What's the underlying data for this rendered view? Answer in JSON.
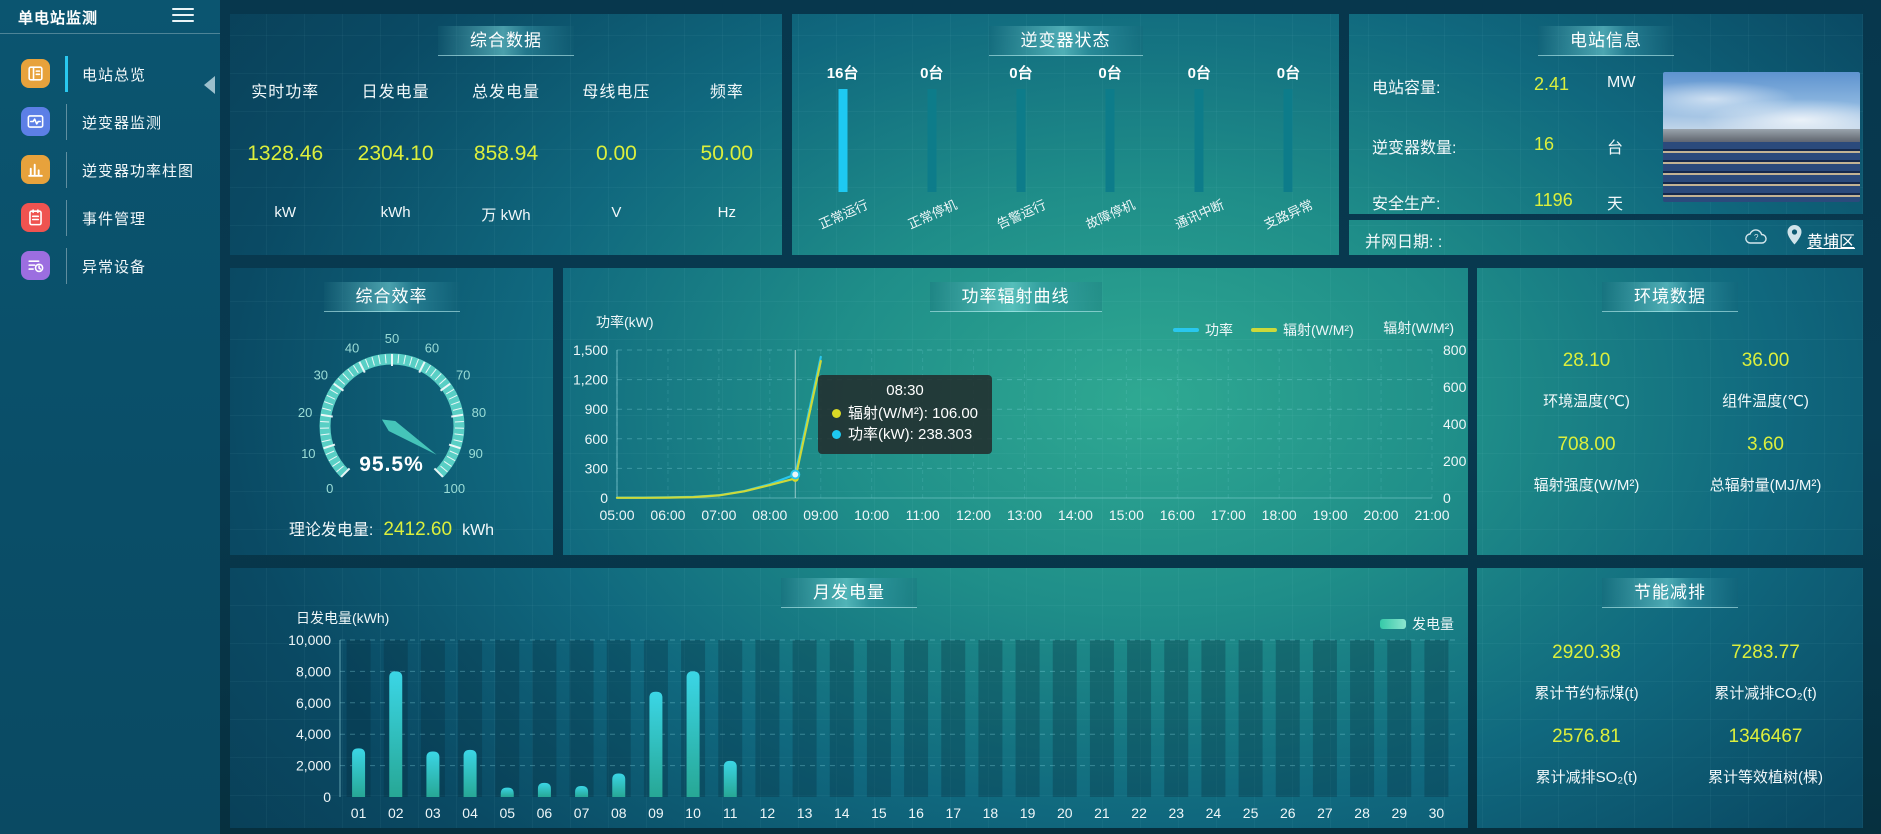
{
  "sidebar": {
    "title": "单电站监测",
    "items": [
      {
        "label": "电站总览",
        "active": true
      },
      {
        "label": "逆变器监测",
        "active": false
      },
      {
        "label": "逆变器功率柱图",
        "active": false
      },
      {
        "label": "事件管理",
        "active": false
      },
      {
        "label": "异常设备",
        "active": false
      }
    ]
  },
  "summary": {
    "title": "综合数据",
    "metrics": [
      {
        "label": "实时功率",
        "value": "1328.46",
        "unit": "kW"
      },
      {
        "label": "日发电量",
        "value": "2304.10",
        "unit": "kWh"
      },
      {
        "label": "总发电量",
        "value": "858.94",
        "unit": "万 kWh"
      },
      {
        "label": "母线电压",
        "value": "0.00",
        "unit": "V"
      },
      {
        "label": "频率",
        "value": "50.00",
        "unit": "Hz"
      }
    ]
  },
  "inverter_status": {
    "title": "逆变器状态",
    "items": [
      {
        "count": "16台",
        "label": "正常运行"
      },
      {
        "count": "0台",
        "label": "正常停机"
      },
      {
        "count": "0台",
        "label": "告警运行"
      },
      {
        "count": "0台",
        "label": "故障停机"
      },
      {
        "count": "0台",
        "label": "通讯中断"
      },
      {
        "count": "0台",
        "label": "支路异常"
      }
    ]
  },
  "station_info": {
    "title": "电站信息",
    "rows": [
      {
        "label": "电站容量:",
        "value": "2.41",
        "unit": "MW"
      },
      {
        "label": "逆变器数量:",
        "value": "16",
        "unit": "台"
      },
      {
        "label": "安全生产:",
        "value": "1196",
        "unit": "天"
      }
    ],
    "grid_date": "并网日期:  :",
    "district": "黄埔区"
  },
  "efficiency": {
    "title": "综合效率",
    "value_label": "95.5%",
    "theory_label": "理论发电量:",
    "theory_value": "2412.60",
    "theory_unit": "kWh"
  },
  "power_curve": {
    "title": "功率辐射曲线",
    "ytitle_left": "功率(kW)",
    "ytitle_right": "辐射(W/M²)",
    "legend": [
      {
        "name": "功率",
        "color": "#29c7ee"
      },
      {
        "name": "辐射(W/M²)",
        "color": "#cdd93a"
      }
    ],
    "tooltip": {
      "time": "08:30",
      "rows": [
        {
          "dot": "#d9d926",
          "text": "辐射(W/M²): 106.00"
        },
        {
          "dot": "#1ec8f0",
          "text": "功率(kW): 238.303"
        }
      ]
    }
  },
  "environment": {
    "title": "环境数据",
    "cells": [
      {
        "value": "28.10",
        "label": "环境温度(℃)"
      },
      {
        "value": "36.00",
        "label": "组件温度(℃)"
      },
      {
        "value": "708.00",
        "label": "辐射强度(W/M²)"
      },
      {
        "value": "3.60",
        "label": "总辐射量(MJ/M²)"
      }
    ]
  },
  "monthly": {
    "title": "月发电量",
    "ytitle": "日发电量(kWh)",
    "legend": "发电量"
  },
  "saving": {
    "title": "节能减排",
    "cells": [
      {
        "value": "2920.38",
        "label": "累计节约标煤(t)"
      },
      {
        "value": "7283.77",
        "label": "累计减排CO₂(t)"
      },
      {
        "value": "2576.81",
        "label": "累计减排SO₂(t)"
      },
      {
        "value": "1346467",
        "label": "累计等效植树(棵)"
      }
    ]
  },
  "chart_data": [
    {
      "type": "line",
      "title": "功率辐射曲线",
      "x": [
        "05:00",
        "06:00",
        "07:00",
        "08:00",
        "09:00",
        "10:00",
        "11:00",
        "12:00",
        "13:00",
        "14:00",
        "15:00",
        "16:00",
        "17:00",
        "18:00",
        "19:00",
        "20:00",
        "21:00"
      ],
      "ylabel_left": "功率(kW)",
      "ylabel_right": "辐射(W/M²)",
      "ylim_left": [
        0,
        1500
      ],
      "ylim_right": [
        0,
        800
      ],
      "yticks_left": [
        0,
        300,
        600,
        900,
        1200,
        1500
      ],
      "yticks_right": [
        0,
        200,
        400,
        600,
        800
      ],
      "axis_pointer_x": "08:30",
      "series": [
        {
          "name": "功率",
          "color": "#29c7ee",
          "axis": "left",
          "points": [
            [
              "05:00",
              3
            ],
            [
              "05:30",
              4
            ],
            [
              "06:00",
              6
            ],
            [
              "06:30",
              12
            ],
            [
              "07:00",
              28
            ],
            [
              "07:30",
              70
            ],
            [
              "08:00",
              140
            ],
            [
              "08:30",
              238.303
            ],
            [
              "09:00",
              1430
            ]
          ]
        },
        {
          "name": "辐射(W/M²)",
          "color": "#cdd93a",
          "axis": "right",
          "points": [
            [
              "05:00",
              1
            ],
            [
              "05:30",
              1
            ],
            [
              "06:00",
              2
            ],
            [
              "06:30",
              5
            ],
            [
              "07:00",
              14
            ],
            [
              "07:30",
              36
            ],
            [
              "08:00",
              70
            ],
            [
              "08:30",
              106
            ],
            [
              "09:00",
              740
            ]
          ]
        }
      ]
    },
    {
      "type": "bar",
      "title": "月发电量",
      "ylabel": "日发电量(kWh)",
      "legend": "发电量",
      "categories": [
        "01",
        "02",
        "03",
        "04",
        "05",
        "06",
        "07",
        "08",
        "09",
        "10",
        "11",
        "12",
        "13",
        "14",
        "15",
        "16",
        "17",
        "18",
        "19",
        "20",
        "21",
        "22",
        "23",
        "24",
        "25",
        "26",
        "27",
        "28",
        "29",
        "30"
      ],
      "values": [
        3100,
        8000,
        2900,
        3000,
        600,
        900,
        700,
        1500,
        6700,
        8000,
        2300,
        0,
        0,
        0,
        0,
        0,
        0,
        0,
        0,
        0,
        0,
        0,
        0,
        0,
        0,
        0,
        0,
        0,
        0,
        0
      ],
      "ylim": [
        0,
        10000
      ],
      "yticks": [
        0,
        2000,
        4000,
        6000,
        8000,
        10000
      ]
    },
    {
      "type": "gauge",
      "title": "综合效率",
      "value": 95.5,
      "display": "95.5%",
      "min": 0,
      "max": 100,
      "ticks": [
        0,
        10,
        20,
        30,
        40,
        50,
        60,
        70,
        80,
        90,
        100
      ]
    },
    {
      "type": "bar",
      "title": "逆变器状态",
      "categories": [
        "正常运行",
        "正常停机",
        "告警运行",
        "故障停机",
        "通讯中断",
        "支路异常"
      ],
      "values": [
        16,
        0,
        0,
        0,
        0,
        0
      ],
      "unit": "台"
    }
  ]
}
